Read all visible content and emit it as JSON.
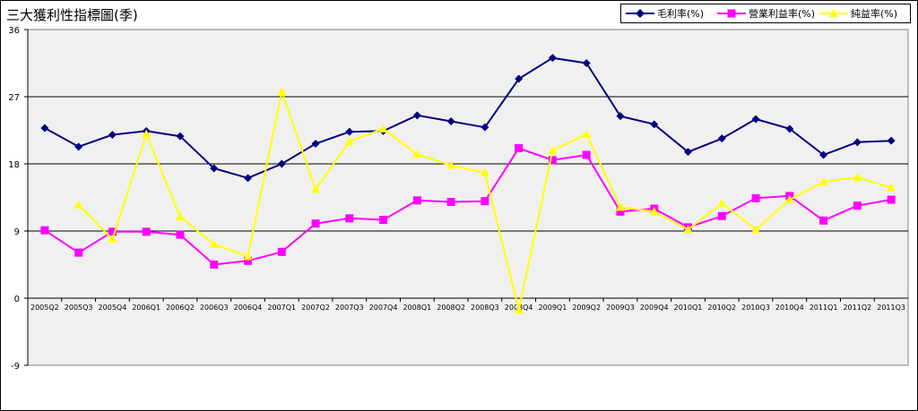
{
  "chart_data": {
    "type": "line",
    "title": "三大獲利性指標圖(季)",
    "categories": [
      "2005Q2",
      "2005Q3",
      "2005Q4",
      "2006Q1",
      "2006Q2",
      "2006Q3",
      "2006Q4",
      "2007Q1",
      "2007Q2",
      "2007Q3",
      "2007Q4",
      "2008Q1",
      "2008Q2",
      "2008Q3",
      "2008Q4",
      "2009Q1",
      "2009Q2",
      "2009Q3",
      "2009Q4",
      "2010Q1",
      "2010Q2",
      "2010Q3",
      "2010Q4",
      "2011Q1",
      "2011Q2",
      "2011Q3"
    ],
    "ylim": [
      -9,
      36
    ],
    "yticks": [
      -9,
      0,
      9,
      18,
      27,
      36
    ],
    "grid": "horizontal",
    "legend_position": "top-right",
    "series": [
      {
        "name": "毛利率(%)",
        "color": "#000080",
        "marker": "diamond",
        "values": [
          22.8,
          20.3,
          21.9,
          22.4,
          21.7,
          17.4,
          16.1,
          18.0,
          20.7,
          22.3,
          22.4,
          24.5,
          23.7,
          22.9,
          29.4,
          32.2,
          31.5,
          24.4,
          23.3,
          19.6,
          21.4,
          24.0,
          22.7,
          19.2,
          20.9,
          21.1
        ]
      },
      {
        "name": "營業利益率(%)",
        "color": "#FF00FF",
        "marker": "square",
        "values": [
          9.1,
          6.1,
          8.9,
          8.9,
          8.5,
          4.5,
          5.0,
          6.2,
          10.0,
          10.7,
          10.5,
          13.1,
          12.9,
          13.0,
          20.1,
          18.5,
          19.2,
          11.6,
          12.0,
          9.5,
          11.0,
          13.4,
          13.7,
          10.4,
          12.4,
          13.2
        ]
      },
      {
        "name": "純益率(%)",
        "color": "#FFFF00",
        "marker": "triangle",
        "values": [
          null,
          12.5,
          7.9,
          22.0,
          10.9,
          7.2,
          5.6,
          27.7,
          14.6,
          21.0,
          22.7,
          19.3,
          17.8,
          16.8,
          -1.6,
          19.8,
          22.0,
          12.2,
          11.6,
          9.2,
          12.7,
          9.2,
          13.2,
          15.6,
          16.2,
          14.8
        ]
      }
    ]
  }
}
